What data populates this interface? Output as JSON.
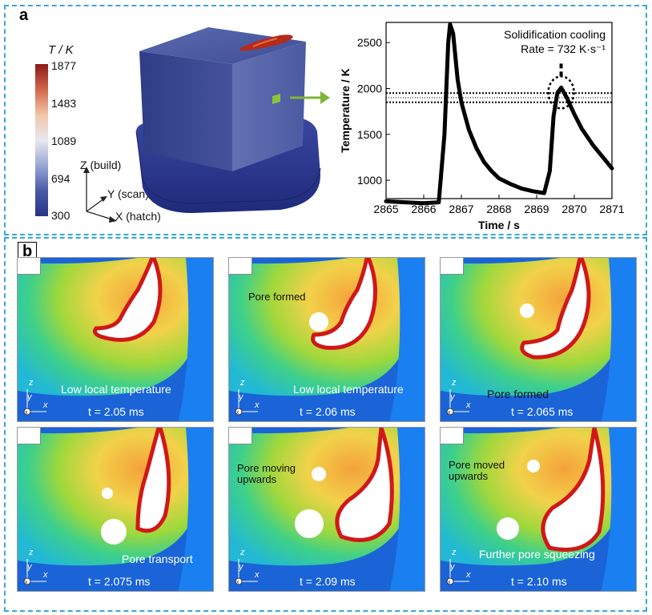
{
  "panel_a": {
    "letter": "a",
    "colorbar": {
      "title": "T / K",
      "ticks": [
        "1877",
        "1483",
        "1089",
        "694",
        "300"
      ],
      "colors": [
        "#8b1a1a",
        "#d2664a",
        "#f0c6a8",
        "#e8e8f0",
        "#9aa6d6",
        "#4b5aa6",
        "#27338a"
      ]
    },
    "axes": {
      "z": "Z (build)",
      "y": "Y (scan)",
      "x": "X (hatch)"
    },
    "cube_colors": {
      "top": "#4a5aa2",
      "left": "#3a4792",
      "right": "#5866aa",
      "base": "#2d3a8a",
      "melt": "#b52a1a",
      "probe": "#8ac33c"
    },
    "chart_data": {
      "type": "line",
      "title": "",
      "xlabel": "Time / s",
      "ylabel": "Temperature / K",
      "xlim": [
        2865,
        2871
      ],
      "ylim": [
        800,
        2720
      ],
      "xticks": [
        2865,
        2866,
        2867,
        2868,
        2869,
        2870,
        2871
      ],
      "yticks": [
        1000,
        1500,
        2000,
        2500
      ],
      "series": [
        {
          "color": "#000000",
          "x": [
            2865.0,
            2865.5,
            2866.0,
            2866.4,
            2866.55,
            2866.65,
            2866.7,
            2866.78,
            2866.9,
            2867.0,
            2867.2,
            2867.4,
            2867.6,
            2867.8,
            2868.0,
            2868.3,
            2868.6,
            2868.9,
            2869.2,
            2869.35,
            2869.45,
            2869.55,
            2869.65,
            2869.8,
            2870.0,
            2870.2,
            2870.5,
            2870.8,
            2871.0
          ],
          "y": [
            770,
            760,
            750,
            760,
            1500,
            2500,
            2700,
            2600,
            2100,
            1850,
            1550,
            1350,
            1200,
            1100,
            1020,
            960,
            910,
            880,
            860,
            1100,
            1700,
            1950,
            2010,
            1900,
            1720,
            1560,
            1380,
            1230,
            1130
          ]
        }
      ],
      "annotation": {
        "line1": "Solidification cooling",
        "line2": "Rate = 732 K·s⁻¹",
        "x": 2869.65,
        "y": 2010
      },
      "band_y": [
        1850,
        1950
      ]
    }
  },
  "panel_b": {
    "letter": "b",
    "tiles": [
      {
        "time": "t = 2.05 ms",
        "label": "Low local temperature",
        "note": ""
      },
      {
        "time": "t = 2.06 ms",
        "label": "Low local temperature",
        "note": "Pore formed"
      },
      {
        "time": "t = 2.065 ms",
        "label": "Pore formed",
        "note": ""
      },
      {
        "time": "t = 2.075 ms",
        "label": "Pore transport",
        "note": ""
      },
      {
        "time": "t = 2.09 ms",
        "label": "",
        "note": "Pore moving upwards"
      },
      {
        "time": "t = 2.10 ms",
        "label": "Further pore squeezing",
        "note": "Pore moved upwards"
      }
    ],
    "mini_axes": {
      "z": "z",
      "y": "y",
      "x": "x"
    }
  }
}
